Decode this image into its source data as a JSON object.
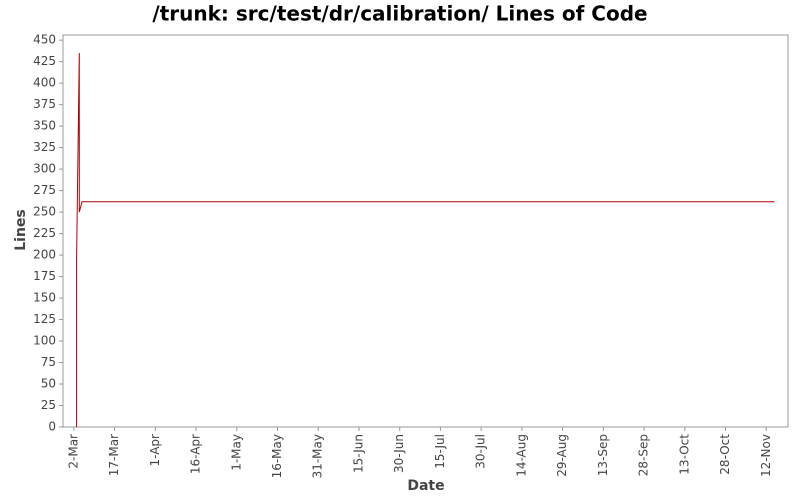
{
  "chart_data": {
    "type": "line",
    "title": "/trunk: src/test/dr/calibration/ Lines of Code",
    "x_label": "Date",
    "y_label": "Lines",
    "x": [
      "3-Mar",
      "3-Mar",
      "4-Mar",
      "4-Mar",
      "5-Mar",
      "15-Nov"
    ],
    "series": [
      {
        "name": "Lines",
        "color": "#b00000",
        "values": [
          0,
          195,
          435,
          250,
          262,
          262
        ]
      }
    ],
    "xlim": [
      "26-Feb",
      "20-Nov"
    ],
    "xticks": [
      "2-Mar",
      "17-Mar",
      "1-Apr",
      "16-Apr",
      "1-May",
      "16-May",
      "31-May",
      "15-Jun",
      "30-Jun",
      "15-Jul",
      "30-Jul",
      "14-Aug",
      "29-Aug",
      "13-Sep",
      "28-Sep",
      "13-Oct",
      "28-Oct",
      "12-Nov"
    ],
    "ylim": [
      0,
      456
    ],
    "yticks": [
      0,
      25,
      50,
      75,
      100,
      125,
      150,
      175,
      200,
      225,
      250,
      275,
      300,
      325,
      350,
      375,
      400,
      425,
      450
    ]
  }
}
